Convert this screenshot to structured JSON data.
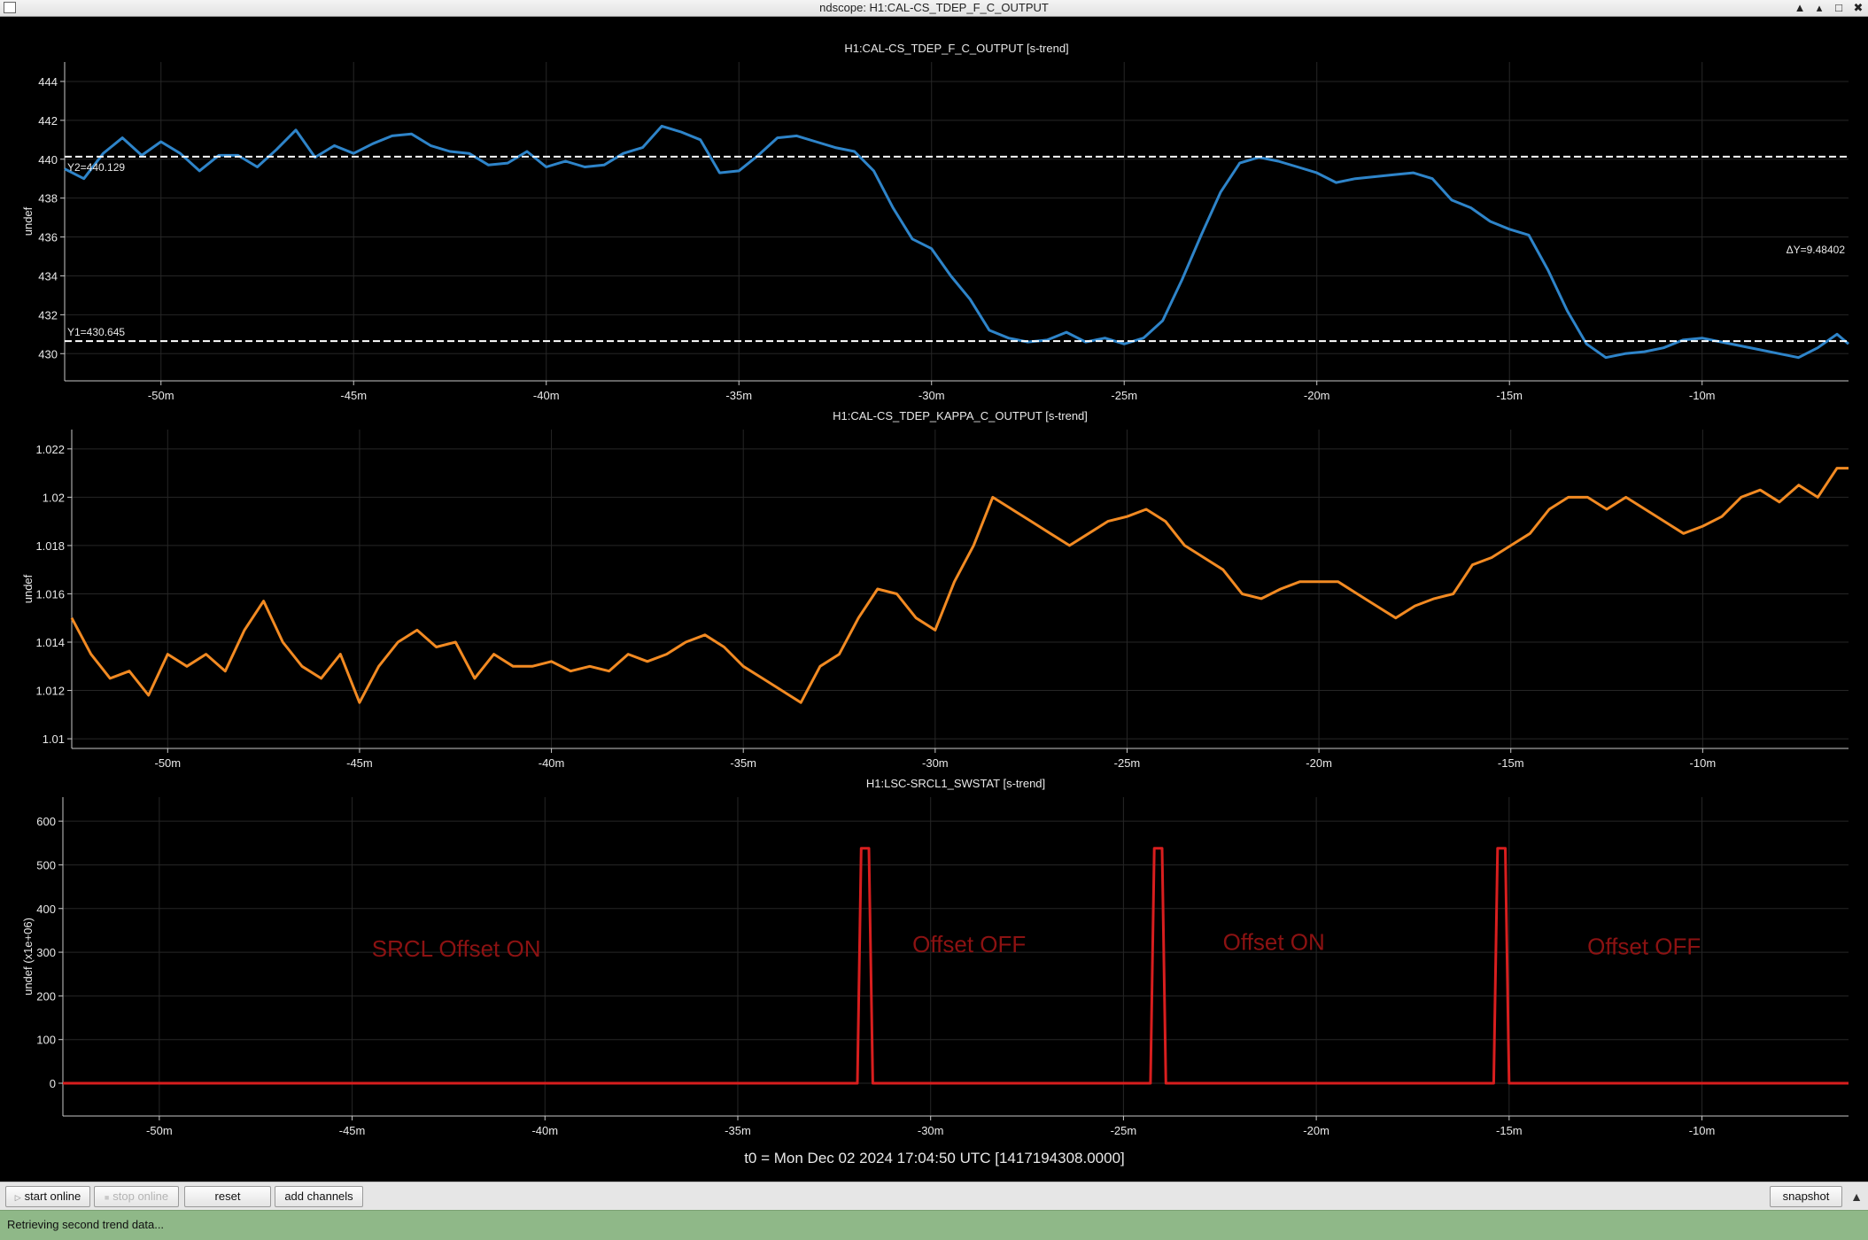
{
  "window": {
    "title": "ndscope: H1:CAL-CS_TDEP_F_C_OUTPUT",
    "min_glyph": "▲",
    "restore_glyph": "▴",
    "max_glyph": "□",
    "close_glyph": "✖"
  },
  "colors": {
    "background": "#000000",
    "grid": "#262626",
    "axis": "#c8c8c8",
    "text": "#e8e8e8",
    "series_f_c": "#2e84c9",
    "series_kappa_c": "#f28a22",
    "series_srcl": "#d81e1e",
    "annotation_text": "#8c1212",
    "cursor_lines": "#ffffff",
    "statusbar": "#8fb888"
  },
  "x_ticks": [
    "-50m",
    "-45m",
    "-40m",
    "-35m",
    "-30m",
    "-25m",
    "-20m",
    "-15m",
    "-10m"
  ],
  "plots": [
    {
      "title": "H1:CAL-CS_TDEP_F_C_OUTPUT [s-trend]",
      "ylabel": "undef",
      "y_ticks": [
        "444",
        "442",
        "440",
        "438",
        "436",
        "434",
        "432",
        "430"
      ],
      "cursors": {
        "y2_label": "Y2=440.129",
        "y1_label": "Y1=430.645",
        "delta_label": "ΔY=9.48402"
      }
    },
    {
      "title": "H1:CAL-CS_TDEP_KAPPA_C_OUTPUT [s-trend]",
      "ylabel": "undef",
      "y_ticks": [
        "1.022",
        "1.02",
        "1.018",
        "1.016",
        "1.014",
        "1.012",
        "1.01"
      ]
    },
    {
      "title": "H1:LSC-SRCL1_SWSTAT [s-trend]",
      "ylabel": "undef (x1e+06)",
      "y_ticks": [
        "600",
        "500",
        "400",
        "300",
        "200",
        "100",
        "0"
      ],
      "annotations": [
        "SRCL Offset ON",
        "Offset OFF",
        "Offset ON",
        "Offset OFF"
      ]
    }
  ],
  "t0_label": "t0 = Mon Dec 02 2024 17:04:50 UTC [1417194308.0000]",
  "toolbar": {
    "start_online": "start online",
    "stop_online": "stop online",
    "reset": "reset",
    "add_channels": "add channels",
    "snapshot": "snapshot",
    "play_icon": "play-icon",
    "stop_icon": "stop-icon",
    "scroll_up_glyph": "▲"
  },
  "status": {
    "message": "Retrieving second trend data..."
  },
  "chart_data": [
    {
      "type": "line",
      "title": "H1:CAL-CS_TDEP_F_C_OUTPUT [s-trend]",
      "xlabel": "",
      "ylabel": "undef",
      "x_unit": "minutes relative to t0",
      "xlim": [
        -52.5,
        -6.2
      ],
      "ylim": [
        428.6,
        445.0
      ],
      "grid": true,
      "series": [
        {
          "x": [
            -52.5,
            -52.0,
            -51.5,
            -51.0,
            -50.5,
            -50.0,
            -49.5,
            -49.0,
            -48.5,
            -48.0,
            -47.5,
            -47.0,
            -46.5,
            -46.0,
            -45.5,
            -45.0,
            -44.5,
            -44.0,
            -43.5,
            -43.0,
            -42.5,
            -42.0,
            -41.5,
            -41.0,
            -40.5,
            -40.0,
            -39.5,
            -39.0,
            -38.5,
            -38.0,
            -37.5,
            -37.0,
            -36.5,
            -36.0,
            -35.5,
            -35.0,
            -34.5,
            -34.0,
            -33.5,
            -33.0,
            -32.5,
            -32.0,
            -31.5,
            -31.0,
            -30.5,
            -30.0,
            -29.5,
            -29.0,
            -28.5,
            -28.0,
            -27.5,
            -27.0,
            -26.5,
            -26.0,
            -25.5,
            -25.0,
            -24.5,
            -24.0,
            -23.5,
            -23.0,
            -22.5,
            -22.0,
            -21.5,
            -21.0,
            -20.5,
            -20.0,
            -19.5,
            -19.0,
            -18.5,
            -18.0,
            -17.5,
            -17.0,
            -16.5,
            -16.0,
            -15.5,
            -15.0,
            -14.5,
            -14.0,
            -13.5,
            -13.0,
            -12.5,
            -12.0,
            -11.5,
            -11.0,
            -10.5,
            -10.0,
            -9.5,
            -9.0,
            -8.5,
            -8.0,
            -7.5,
            -7.0,
            -6.5,
            -6.2
          ],
          "y": [
            439.5,
            439.0,
            440.3,
            441.1,
            440.2,
            440.9,
            440.3,
            439.4,
            440.2,
            440.2,
            439.6,
            440.5,
            441.5,
            440.1,
            440.7,
            440.3,
            440.8,
            441.2,
            441.3,
            440.7,
            440.4,
            440.3,
            439.7,
            439.8,
            440.4,
            439.6,
            439.9,
            439.6,
            439.7,
            440.3,
            440.6,
            441.7,
            441.4,
            441.0,
            439.3,
            439.4,
            440.2,
            441.1,
            441.2,
            440.9,
            440.6,
            440.4,
            439.4,
            437.5,
            435.9,
            435.4,
            434.0,
            432.8,
            431.2,
            430.8,
            430.6,
            430.7,
            431.1,
            430.6,
            430.8,
            430.5,
            430.8,
            431.7,
            433.8,
            436.1,
            438.3,
            439.8,
            440.1,
            439.9,
            439.6,
            439.3,
            438.8,
            439.0,
            439.1,
            439.2,
            439.3,
            439.0,
            437.9,
            437.5,
            436.8,
            436.4,
            436.1,
            434.3,
            432.2,
            430.5,
            429.8,
            430.0,
            430.1,
            430.3,
            430.7,
            430.8,
            430.6,
            430.4,
            430.2,
            430.0,
            429.8,
            430.3,
            431.0,
            430.5
          ]
        }
      ],
      "cursors": {
        "y1": 430.645,
        "y2": 440.129,
        "delta": 9.48402
      }
    },
    {
      "type": "line",
      "title": "H1:CAL-CS_TDEP_KAPPA_C_OUTPUT [s-trend]",
      "xlabel": "",
      "ylabel": "undef",
      "x_unit": "minutes relative to t0",
      "xlim": [
        -52.5,
        -6.2
      ],
      "ylim": [
        1.0096,
        1.0228
      ],
      "grid": true,
      "series": [
        {
          "x": [
            -52.5,
            -52.0,
            -51.5,
            -51.0,
            -50.5,
            -50.0,
            -49.5,
            -49.0,
            -48.5,
            -48.0,
            -47.5,
            -47.0,
            -46.5,
            -46.0,
            -45.5,
            -45.0,
            -44.5,
            -44.0,
            -43.5,
            -43.0,
            -42.5,
            -42.0,
            -41.5,
            -41.0,
            -40.5,
            -40.0,
            -39.5,
            -39.0,
            -38.5,
            -38.0,
            -37.5,
            -37.0,
            -36.5,
            -36.0,
            -35.5,
            -35.0,
            -34.5,
            -34.0,
            -33.5,
            -33.0,
            -32.5,
            -32.0,
            -31.5,
            -31.0,
            -30.5,
            -30.0,
            -29.5,
            -29.0,
            -28.5,
            -28.0,
            -27.5,
            -27.0,
            -26.5,
            -26.0,
            -25.5,
            -25.0,
            -24.5,
            -24.0,
            -23.5,
            -23.0,
            -22.5,
            -22.0,
            -21.5,
            -21.0,
            -20.5,
            -20.0,
            -19.5,
            -19.0,
            -18.5,
            -18.0,
            -17.5,
            -17.0,
            -16.5,
            -16.0,
            -15.5,
            -15.0,
            -14.5,
            -14.0,
            -13.5,
            -13.0,
            -12.5,
            -12.0,
            -11.5,
            -11.0,
            -10.5,
            -10.0,
            -9.5,
            -9.0,
            -8.5,
            -8.0,
            -7.5,
            -7.0,
            -6.5,
            -6.2
          ],
          "y": [
            1.015,
            1.0135,
            1.0125,
            1.0128,
            1.0118,
            1.0135,
            1.013,
            1.0135,
            1.0128,
            1.0145,
            1.0157,
            1.014,
            1.013,
            1.0125,
            1.0135,
            1.0115,
            1.013,
            1.014,
            1.0145,
            1.0138,
            1.014,
            1.0125,
            1.0135,
            1.013,
            1.013,
            1.0132,
            1.0128,
            1.013,
            1.0128,
            1.0135,
            1.0132,
            1.0135,
            1.014,
            1.0143,
            1.0138,
            1.013,
            1.0125,
            1.012,
            1.0115,
            1.013,
            1.0135,
            1.015,
            1.0162,
            1.016,
            1.015,
            1.0145,
            1.0165,
            1.018,
            1.02,
            1.0195,
            1.019,
            1.0185,
            1.018,
            1.0185,
            1.019,
            1.0192,
            1.0195,
            1.019,
            1.018,
            1.0175,
            1.017,
            1.016,
            1.0158,
            1.0162,
            1.0165,
            1.0165,
            1.0165,
            1.016,
            1.0155,
            1.015,
            1.0155,
            1.0158,
            1.016,
            1.0172,
            1.0175,
            1.018,
            1.0185,
            1.0195,
            1.02,
            1.02,
            1.0195,
            1.02,
            1.0195,
            1.019,
            1.0185,
            1.0188,
            1.0192,
            1.02,
            1.0203,
            1.0198,
            1.0205,
            1.02,
            1.0212,
            1.0212
          ]
        }
      ]
    },
    {
      "type": "line",
      "title": "H1:LSC-SRCL1_SWSTAT [s-trend]",
      "xlabel": "",
      "ylabel": "undef (x1e+06)",
      "x_unit": "minutes relative to t0",
      "xlim": [
        -52.5,
        -6.2
      ],
      "ylim": [
        -75,
        655
      ],
      "grid": true,
      "series": [
        {
          "x": [
            -52.5,
            -31.9,
            -31.8,
            -31.6,
            -31.5,
            -24.3,
            -24.2,
            -24.0,
            -23.9,
            -15.4,
            -15.3,
            -15.1,
            -15.0,
            -6.2
          ],
          "y": [
            0,
            0,
            538,
            538,
            0,
            0,
            538,
            538,
            0,
            0,
            538,
            538,
            0,
            0
          ]
        }
      ],
      "annotations": [
        {
          "text": "SRCL Offset ON",
          "x": -42.3,
          "y": 290
        },
        {
          "text": "Offset OFF",
          "x": -29.0,
          "y": 300
        },
        {
          "text": "Offset ON",
          "x": -21.1,
          "y": 305
        },
        {
          "text": "Offset OFF",
          "x": -11.5,
          "y": 295
        }
      ]
    }
  ]
}
